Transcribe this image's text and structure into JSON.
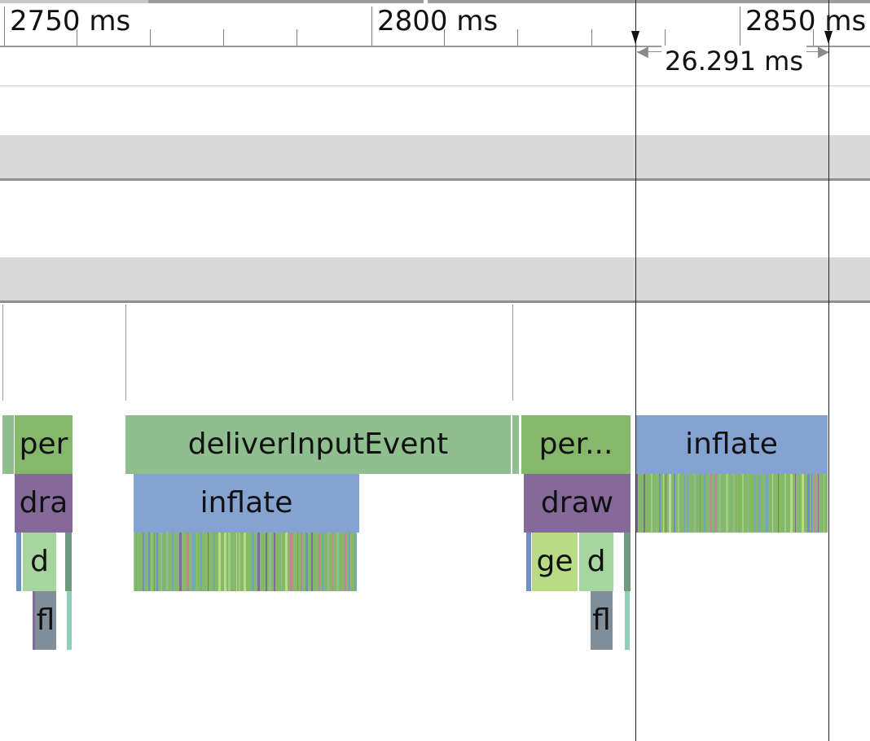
{
  "ruler": {
    "ticks": [
      {
        "label": "2750 ms"
      },
      {
        "label": "2800 ms"
      },
      {
        "label": "2850 ms"
      }
    ]
  },
  "measurement": {
    "label": "26.291 ms"
  },
  "slices": {
    "per_left": "per",
    "deliver_input_event": "deliverInputEvent",
    "per_right": "per...",
    "inflate_right": "inflate",
    "dra_left": "dra",
    "inflate_mid": "inflate",
    "draw_right": "draw",
    "d_left": "d",
    "ge_right": "ge",
    "d_right": "d",
    "fl_left": "fl",
    "fl_right": "fl"
  },
  "colors": {
    "green_light": "#8fbf8f",
    "green_mid": "#85b86b",
    "blue": "#85a3d1",
    "purple": "#85699a",
    "pale_green": "#a6d69e",
    "lime": "#b8db85",
    "slate": "#7f8e99",
    "track_header": "#d9d9d9"
  }
}
